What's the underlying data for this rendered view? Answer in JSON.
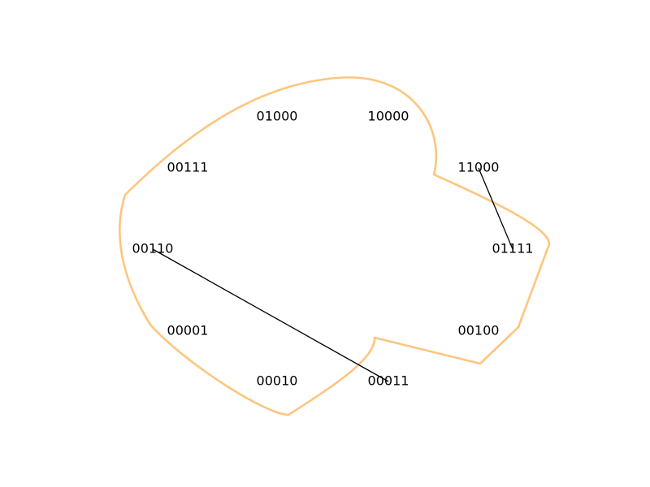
{
  "nodes": [
    {
      "id": "n01000",
      "label": "01000"
    },
    {
      "id": "n10000",
      "label": "10000"
    },
    {
      "id": "n00111",
      "label": "00111"
    },
    {
      "id": "n11000",
      "label": "11000"
    },
    {
      "id": "n00110",
      "label": "00110"
    },
    {
      "id": "n01111",
      "label": "01111"
    },
    {
      "id": "n00001",
      "label": "00001"
    },
    {
      "id": "n00100",
      "label": "00100"
    },
    {
      "id": "n00010",
      "label": "00010"
    },
    {
      "id": "n00011",
      "label": "00011"
    }
  ],
  "edges": [
    {
      "from": "n11000",
      "to": "n01111"
    },
    {
      "from": "n00110",
      "to": "n00011"
    }
  ],
  "colors": {
    "hull": "#fec57e",
    "edge": "#000000",
    "label": "#000000",
    "background": "#ffffff"
  }
}
